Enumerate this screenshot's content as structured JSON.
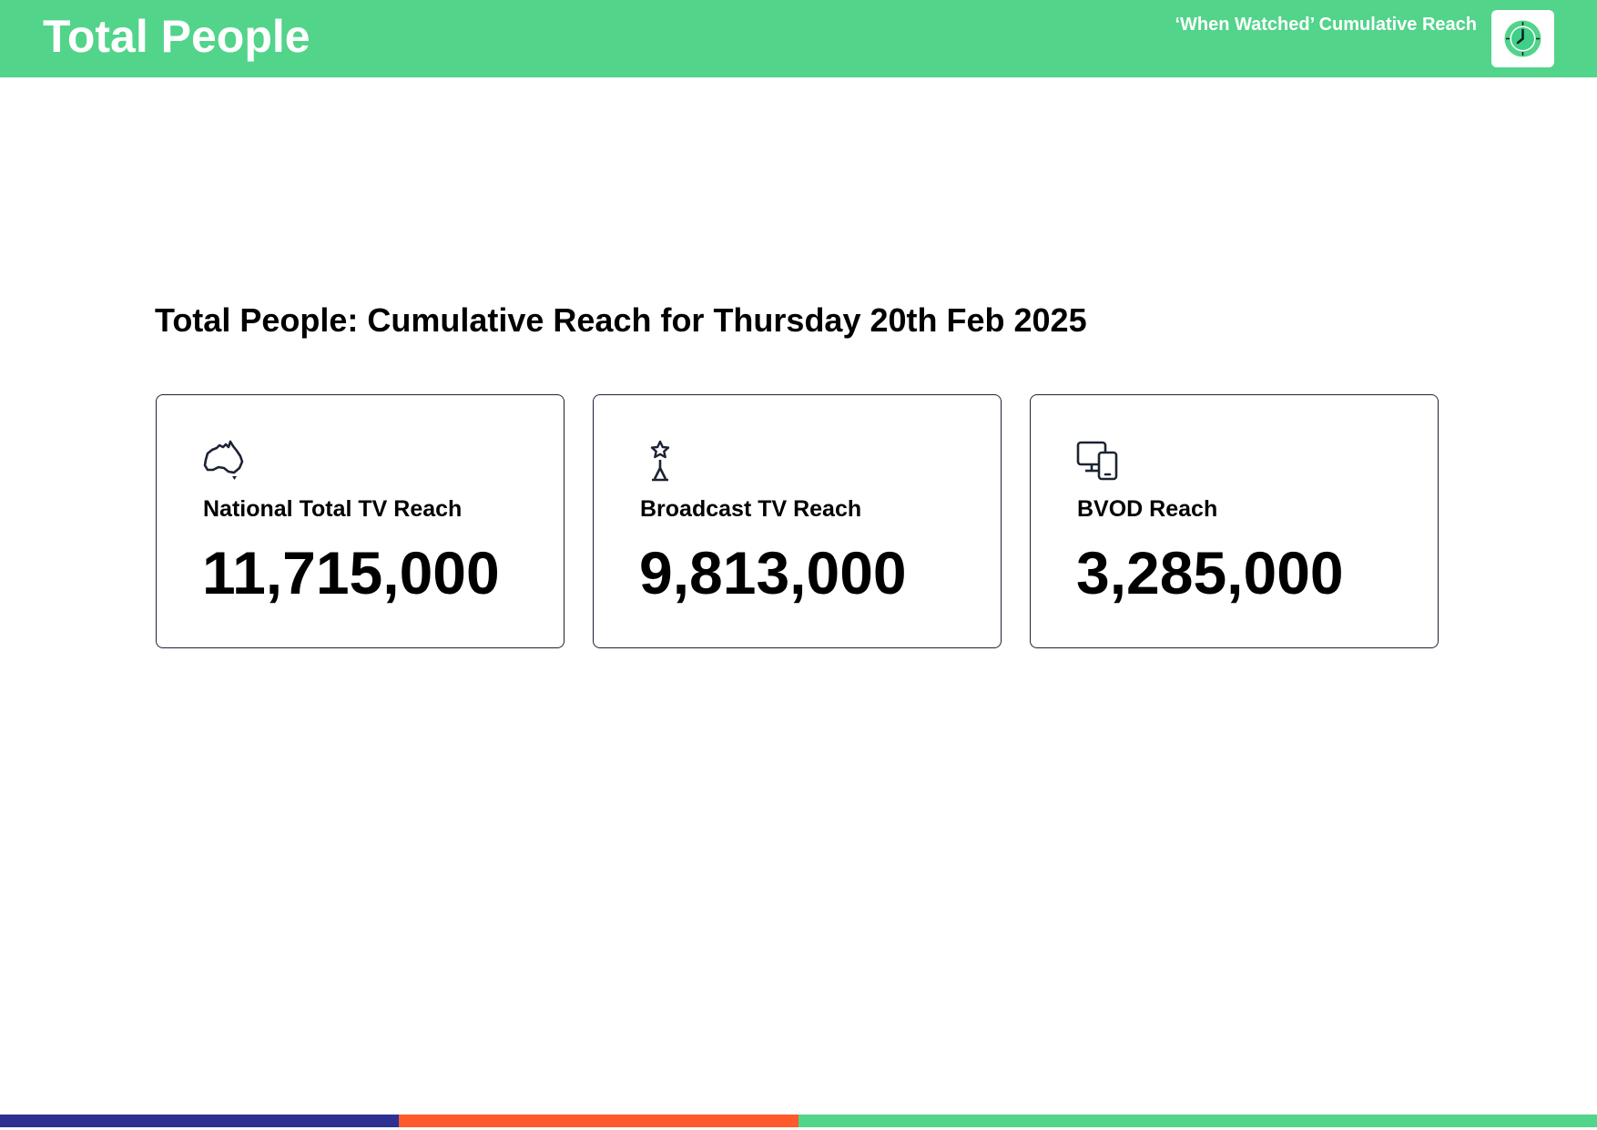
{
  "header": {
    "title": "Total People",
    "subtitle": "‘When Watched’ Cumulative Reach",
    "logo_icon": "clock-icon"
  },
  "main": {
    "title": "Total People: Cumulative Reach for Thursday 20th Feb 2025",
    "cards": [
      {
        "icon": "australia-map-icon",
        "label": "National Total TV Reach",
        "value": "11,715,000"
      },
      {
        "icon": "broadcast-tower-icon",
        "label": "Broadcast TV Reach",
        "value": "9,813,000"
      },
      {
        "icon": "devices-icon",
        "label": "BVOD Reach",
        "value": "3,285,000"
      }
    ]
  },
  "colors": {
    "header_bg": "#52d48a",
    "footer_navy": "#2e3192",
    "footer_orange": "#ff5a2b",
    "footer_green": "#52d48a",
    "icon_stroke": "#1c2333"
  }
}
